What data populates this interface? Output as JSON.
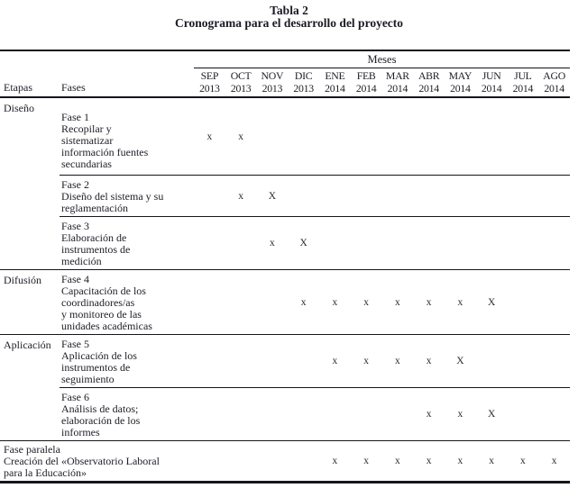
{
  "title": {
    "number": "Tabla 2",
    "caption": "Cronograma para el desarrollo del proyecto"
  },
  "table": {
    "meses_label": "Meses",
    "etapas_header": "Etapas",
    "fases_header": "Fases",
    "months": [
      {
        "name": "SEP",
        "year": "2013"
      },
      {
        "name": "OCT",
        "year": "2013"
      },
      {
        "name": "NOV",
        "year": "2013"
      },
      {
        "name": "DIC",
        "year": "2013"
      },
      {
        "name": "ENE",
        "year": "2014"
      },
      {
        "name": "FEB",
        "year": "2014"
      },
      {
        "name": "MAR",
        "year": "2014"
      },
      {
        "name": "ABR",
        "year": "2014"
      },
      {
        "name": "MAY",
        "year": "2014"
      },
      {
        "name": "JUN",
        "year": "2014"
      },
      {
        "name": "JUL",
        "year": "2014"
      },
      {
        "name": "AGO",
        "year": "2014"
      }
    ],
    "rows": [
      {
        "etapa": "Diseño",
        "fase": "Fase 1\nRecopilar y\nsistematizar\ninformación fuentes\nsecundarias",
        "marks": [
          "x",
          "x",
          "",
          "",
          "",
          "",
          "",
          "",
          "",
          "",
          "",
          ""
        ]
      },
      {
        "fase": "Fase 2\nDiseño del sistema y su\nreglamentación",
        "marks": [
          "",
          "x",
          "X",
          "",
          "",
          "",
          "",
          "",
          "",
          "",
          "",
          ""
        ]
      },
      {
        "fase": "Fase 3\nElaboración de\ninstrumentos de\nmedición",
        "marks": [
          "",
          "",
          "x",
          "X",
          "",
          "",
          "",
          "",
          "",
          "",
          "",
          ""
        ]
      },
      {
        "etapa": "Difusión",
        "fase": "Fase 4\nCapacitación de los\ncoordinadores/as\ny monitoreo de las\nunidades académicas",
        "marks": [
          "",
          "",
          "",
          "x",
          "x",
          "x",
          "x",
          "x",
          "x",
          "X",
          "",
          ""
        ]
      },
      {
        "etapa": "Aplicación",
        "fase": "Fase 5\nAplicación de los\ninstrumentos de\nseguimiento",
        "marks": [
          "",
          "",
          "",
          "",
          "x",
          "x",
          "x",
          "x",
          "X",
          "",
          "",
          ""
        ]
      },
      {
        "fase": "Fase 6\nAnálisis de datos;\nelaboración de los\ninformes",
        "marks": [
          "",
          "",
          "",
          "",
          "",
          "",
          "",
          "x",
          "x",
          "X",
          "",
          ""
        ]
      },
      {
        "fase_paralela": "Fase paralela\nCreación del «Observatorio Laboral\npara la Educación»",
        "marks": [
          "",
          "",
          "",
          "",
          "x",
          "x",
          "x",
          "x",
          "x",
          "x",
          "x",
          "x"
        ]
      }
    ]
  }
}
